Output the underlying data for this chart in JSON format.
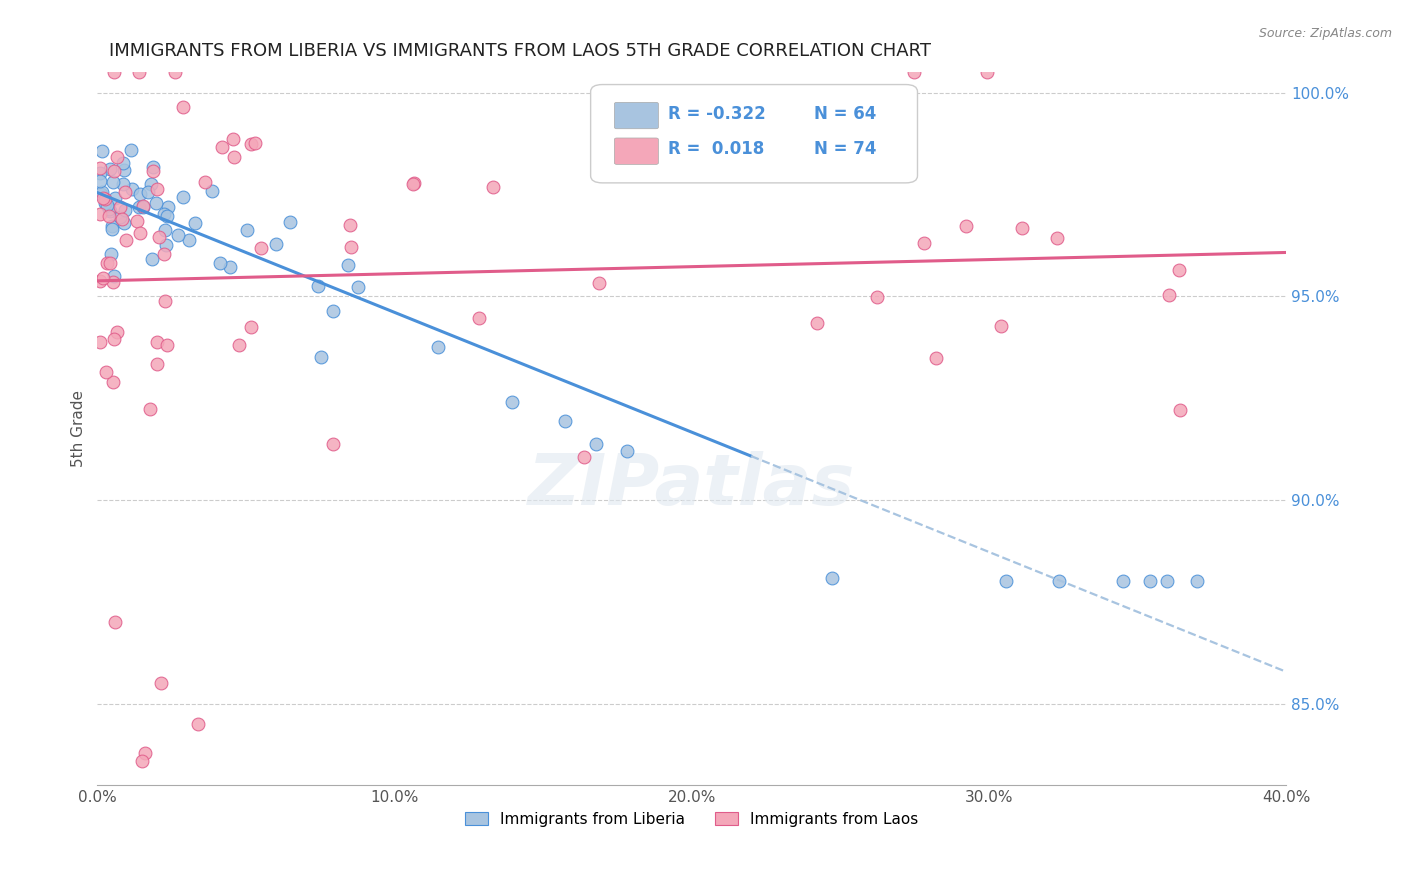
{
  "title": "IMMIGRANTS FROM LIBERIA VS IMMIGRANTS FROM LAOS 5TH GRADE CORRELATION CHART",
  "source": "Source: ZipAtlas.com",
  "ylabel": "5th Grade",
  "xlim": [
    0.0,
    0.4
  ],
  "ylim": [
    0.83,
    1.005
  ],
  "liberia_color": "#a8c4e0",
  "laos_color": "#f4a7b9",
  "liberia_line_color": "#4a90d9",
  "laos_line_color": "#e05c8a",
  "dashed_line_color": "#a8c4e0",
  "legend_R_liberia": "-0.322",
  "legend_N_liberia": "64",
  "legend_R_laos": "0.018",
  "legend_N_laos": "74",
  "watermark": "ZIPatlas",
  "n_lib": 64,
  "n_laos": 74
}
